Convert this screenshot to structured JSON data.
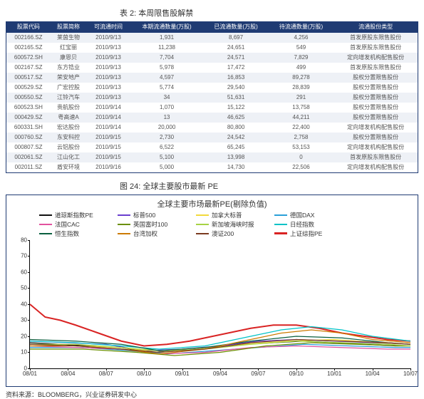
{
  "table": {
    "caption": "表 2: 本周限售股解禁",
    "columns": [
      "股票代码",
      "股票简称",
      "可流通时间",
      "本期流通数量(万股)",
      "已流通数量(万股)",
      "待流通数量(万股)",
      "流通股份类型"
    ],
    "rows": [
      [
        "002166.SZ",
        "莱茵生物",
        "2010/9/13",
        "1,931",
        "8,697",
        "4,256",
        "首发原股东限售股份"
      ],
      [
        "002165.SZ",
        "红宝丽",
        "2010/9/13",
        "11,238",
        "24,651",
        "549",
        "首发原股东限售股份"
      ],
      [
        "600572.SH",
        "康恩贝",
        "2010/9/13",
        "7,704",
        "24,571",
        "7,829",
        "定向增发机构配售股份"
      ],
      [
        "002167.SZ",
        "东方锆业",
        "2010/9/13",
        "5,978",
        "17,472",
        "499",
        "首发原股东限售股份"
      ],
      [
        "000517.SZ",
        "荣安地产",
        "2010/9/13",
        "4,597",
        "16,853",
        "89,278",
        "股权分置限售股份"
      ],
      [
        "000529.SZ",
        "广宏控股",
        "2010/9/13",
        "5,774",
        "29,540",
        "28,839",
        "股权分置限售股份"
      ],
      [
        "000550.SZ",
        "江铃汽车",
        "2010/9/13",
        "34",
        "51,631",
        "291",
        "股权分置限售股份"
      ],
      [
        "600523.SH",
        "贵航股份",
        "2010/9/14",
        "1,070",
        "15,122",
        "13,758",
        "股权分置限售股份"
      ],
      [
        "000429.SZ",
        "粤高速A",
        "2010/9/14",
        "13",
        "46,625",
        "44,211",
        "股权分置限售股份"
      ],
      [
        "600331.SH",
        "宏达股份",
        "2010/9/14",
        "20,000",
        "80,800",
        "22,400",
        "定向增发机构配售股份"
      ],
      [
        "000760.SZ",
        "东安科控",
        "2010/9/15",
        "2,730",
        "24,542",
        "2,758",
        "股权分置限售股份"
      ],
      [
        "000807.SZ",
        "云铝股份",
        "2010/9/15",
        "6,522",
        "65,245",
        "53,153",
        "定向增发机构配售股份"
      ],
      [
        "002061.SZ",
        "江山化工",
        "2010/9/15",
        "5,100",
        "13,998",
        "0",
        "首发原股东限售股份"
      ],
      [
        "002011.SZ",
        "盾安环境",
        "2010/9/16",
        "5,000",
        "14,730",
        "22,506",
        "定向增发机构配售股份"
      ]
    ]
  },
  "chart": {
    "caption": "图 24: 全球主要股市最新 PE",
    "title": "全球主要市场最新PE(剔除负值)",
    "source": "资料来源：BLOOMBERG，兴业证券研发中心",
    "ylim": [
      0,
      80
    ],
    "yticks": [
      0,
      10,
      20,
      30,
      40,
      50,
      60,
      70,
      80
    ],
    "xticks": [
      "08/01",
      "08/04",
      "08/07",
      "08/10",
      "09/01",
      "09/04",
      "09/07",
      "09/10",
      "10/01",
      "10/04",
      "10/07"
    ],
    "legend": [
      {
        "label": "道琼斯指数PE",
        "color": "#111111"
      },
      {
        "label": "标普500",
        "color": "#6a3fcf"
      },
      {
        "label": "加拿大标普",
        "color": "#f2d93c"
      },
      {
        "label": "德国DAX",
        "color": "#2aa0d8"
      },
      {
        "label": "法国CAC",
        "color": "#e2519e"
      },
      {
        "label": "英国富时100",
        "color": "#6b8f00"
      },
      {
        "label": "新加坡海峡时报",
        "color": "#a7d344"
      },
      {
        "label": "日经指数",
        "color": "#00c2c7"
      },
      {
        "label": "恒生指数",
        "color": "#0a5f3f"
      },
      {
        "label": "台湾加权",
        "color": "#cc7a00"
      },
      {
        "label": "澳证200",
        "color": "#7a3b1f"
      },
      {
        "label": "上证综指PE",
        "color": "#d92323",
        "bold": true
      }
    ],
    "series": [
      {
        "color": "#d92323",
        "width": 2,
        "points": [
          [
            0,
            40
          ],
          [
            4,
            32
          ],
          [
            8,
            30
          ],
          [
            12,
            27
          ],
          [
            18,
            22
          ],
          [
            24,
            17
          ],
          [
            30,
            14
          ],
          [
            36,
            15
          ],
          [
            42,
            17
          ],
          [
            50,
            21
          ],
          [
            58,
            25
          ],
          [
            64,
            27
          ],
          [
            70,
            27
          ],
          [
            76,
            25
          ],
          [
            82,
            22
          ],
          [
            88,
            20
          ],
          [
            94,
            18
          ],
          [
            100,
            17
          ]
        ]
      },
      {
        "color": "#111111",
        "width": 1.2,
        "points": [
          [
            0,
            16
          ],
          [
            8,
            15
          ],
          [
            16,
            14
          ],
          [
            24,
            13
          ],
          [
            32,
            10
          ],
          [
            40,
            11
          ],
          [
            48,
            13
          ],
          [
            56,
            15
          ],
          [
            64,
            16
          ],
          [
            72,
            17
          ],
          [
            80,
            16
          ],
          [
            88,
            15
          ],
          [
            96,
            14
          ],
          [
            100,
            14
          ]
        ]
      },
      {
        "color": "#6a3fcf",
        "width": 1.2,
        "points": [
          [
            0,
            17
          ],
          [
            10,
            16
          ],
          [
            20,
            15
          ],
          [
            30,
            11
          ],
          [
            40,
            12
          ],
          [
            50,
            14
          ],
          [
            60,
            17
          ],
          [
            70,
            18
          ],
          [
            80,
            17
          ],
          [
            90,
            16
          ],
          [
            100,
            15
          ]
        ]
      },
      {
        "color": "#f2d93c",
        "width": 1.2,
        "points": [
          [
            0,
            15
          ],
          [
            12,
            14
          ],
          [
            24,
            13
          ],
          [
            34,
            10
          ],
          [
            44,
            12
          ],
          [
            56,
            15
          ],
          [
            68,
            17
          ],
          [
            80,
            18
          ],
          [
            92,
            16
          ],
          [
            100,
            15
          ]
        ]
      },
      {
        "color": "#2aa0d8",
        "width": 1.2,
        "points": [
          [
            0,
            13
          ],
          [
            14,
            13
          ],
          [
            26,
            11
          ],
          [
            36,
            9
          ],
          [
            48,
            11
          ],
          [
            60,
            13
          ],
          [
            72,
            15
          ],
          [
            84,
            14
          ],
          [
            96,
            13
          ],
          [
            100,
            13
          ]
        ]
      },
      {
        "color": "#e2519e",
        "width": 1.2,
        "points": [
          [
            0,
            14
          ],
          [
            12,
            13
          ],
          [
            24,
            12
          ],
          [
            34,
            9
          ],
          [
            46,
            10
          ],
          [
            58,
            13
          ],
          [
            70,
            14
          ],
          [
            82,
            13
          ],
          [
            94,
            12
          ],
          [
            100,
            12
          ]
        ]
      },
      {
        "color": "#6b8f00",
        "width": 1.2,
        "points": [
          [
            0,
            12
          ],
          [
            14,
            12
          ],
          [
            28,
            10
          ],
          [
            38,
            8
          ],
          [
            50,
            10
          ],
          [
            62,
            14
          ],
          [
            74,
            16
          ],
          [
            86,
            15
          ],
          [
            98,
            14
          ],
          [
            100,
            14
          ]
        ]
      },
      {
        "color": "#a7d344",
        "width": 1.2,
        "points": [
          [
            0,
            15
          ],
          [
            12,
            15
          ],
          [
            24,
            13
          ],
          [
            34,
            11
          ],
          [
            46,
            12
          ],
          [
            58,
            15
          ],
          [
            70,
            17
          ],
          [
            82,
            16
          ],
          [
            94,
            15
          ],
          [
            100,
            14
          ]
        ]
      },
      {
        "color": "#00c2c7",
        "width": 1.2,
        "points": [
          [
            0,
            17
          ],
          [
            12,
            16
          ],
          [
            24,
            14
          ],
          [
            34,
            12
          ],
          [
            46,
            14
          ],
          [
            58,
            20
          ],
          [
            66,
            24
          ],
          [
            74,
            26
          ],
          [
            82,
            24
          ],
          [
            90,
            20
          ],
          [
            100,
            17
          ]
        ]
      },
      {
        "color": "#0a5f3f",
        "width": 1.2,
        "points": [
          [
            0,
            18
          ],
          [
            12,
            17
          ],
          [
            24,
            15
          ],
          [
            34,
            11
          ],
          [
            46,
            13
          ],
          [
            58,
            17
          ],
          [
            70,
            20
          ],
          [
            82,
            19
          ],
          [
            94,
            16
          ],
          [
            100,
            15
          ]
        ]
      },
      {
        "color": "#cc7a00",
        "width": 1.2,
        "points": [
          [
            0,
            14
          ],
          [
            12,
            14
          ],
          [
            24,
            12
          ],
          [
            34,
            9
          ],
          [
            46,
            12
          ],
          [
            58,
            18
          ],
          [
            66,
            22
          ],
          [
            74,
            24
          ],
          [
            82,
            22
          ],
          [
            90,
            18
          ],
          [
            100,
            16
          ]
        ]
      },
      {
        "color": "#7a3b1f",
        "width": 1.2,
        "points": [
          [
            0,
            15
          ],
          [
            12,
            14
          ],
          [
            24,
            12
          ],
          [
            34,
            10
          ],
          [
            46,
            12
          ],
          [
            58,
            16
          ],
          [
            70,
            18
          ],
          [
            82,
            17
          ],
          [
            94,
            16
          ],
          [
            100,
            15
          ]
        ]
      }
    ]
  }
}
